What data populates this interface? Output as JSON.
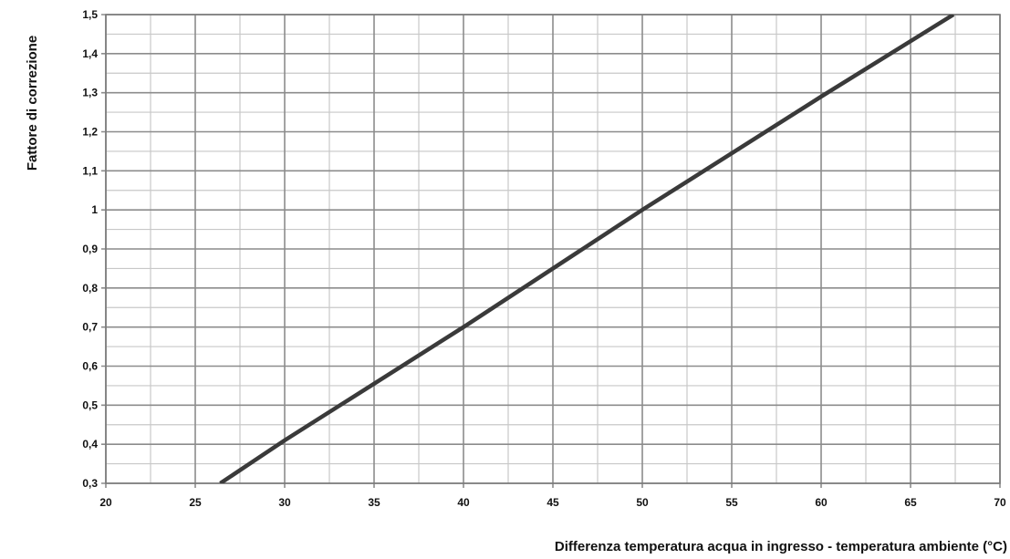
{
  "chart_data": {
    "type": "line",
    "title": "",
    "xlabel": "Differenza temperatura acqua in ingresso - temperatura ambiente (°C)",
    "ylabel": "Fattore di correzione",
    "xlim": [
      20,
      70
    ],
    "ylim": [
      0.3,
      1.5
    ],
    "x_ticks": [
      20,
      25,
      30,
      35,
      40,
      45,
      50,
      55,
      60,
      65,
      70
    ],
    "x_tick_labels": [
      "20",
      "25",
      "30",
      "35",
      "40",
      "45",
      "50",
      "55",
      "60",
      "65",
      "70"
    ],
    "y_ticks": [
      0.3,
      0.4,
      0.5,
      0.6,
      0.7,
      0.8,
      0.9,
      1.0,
      1.1,
      1.2,
      1.3,
      1.4,
      1.5
    ],
    "y_tick_labels": [
      "0,3",
      "0,4",
      "0,5",
      "0,6",
      "0,7",
      "0,8",
      "0,9",
      "1",
      "1,1",
      "1,2",
      "1,3",
      "1,4",
      "1,5"
    ],
    "x_minor_step": 2.5,
    "y_minor_step": 0.05,
    "grid": true,
    "legend": "none",
    "series": [
      {
        "x": [
          26.4,
          30,
          40,
          50,
          60,
          67.4
        ],
        "y": [
          0.3,
          0.41,
          0.7,
          1.0,
          1.29,
          1.5
        ]
      }
    ],
    "colors": {
      "line": "#3a3a3a",
      "major_grid": "#8c8c8c",
      "minor_grid": "#c8c8c8",
      "frame": "#7a7a7a",
      "text": "#111111"
    }
  }
}
